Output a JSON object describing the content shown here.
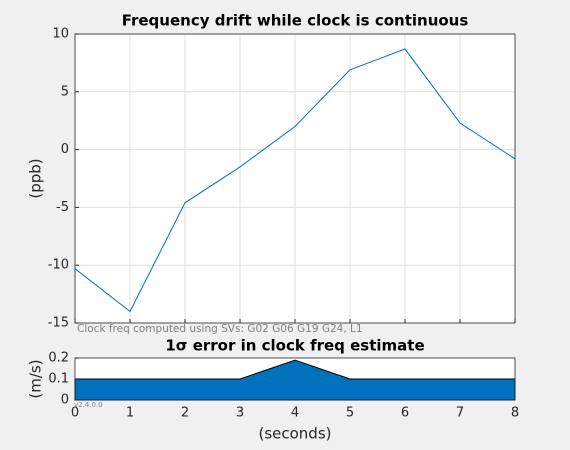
{
  "chart_data": [
    {
      "type": "line",
      "title": "Frequency drift while clock is continuous",
      "ylabel": "(ppb)",
      "annotation": "Clock freq computed using SVs:  G02 G06 G19 G24, L1",
      "x": [
        0,
        1,
        2,
        3,
        4,
        5,
        6,
        7,
        8
      ],
      "series": [
        {
          "color": "#0072bd",
          "values": [
            -10.3,
            -14,
            -4.6,
            -1.5,
            2,
            6.9,
            8.7,
            2.3,
            -0.8
          ]
        }
      ],
      "xlim": [
        0,
        8
      ],
      "xticks": [
        0,
        1,
        2,
        3,
        4,
        5,
        6,
        7,
        8
      ],
      "ylim": [
        -15,
        10
      ],
      "yticks": [
        -15,
        -10,
        -5,
        0,
        5,
        10
      ],
      "grid": true
    },
    {
      "type": "area",
      "title": "1σ error in clock freq estimate",
      "ylabel": "(m/s)",
      "xlabel": "(seconds)",
      "annotation": "v2.4.0.0",
      "x": [
        0,
        1,
        2,
        3,
        4,
        5,
        6,
        7,
        8
      ],
      "series": [
        {
          "color": "#0072bd",
          "values": [
            0.1,
            0.1,
            0.1,
            0.1,
            0.19,
            0.1,
            0.1,
            0.1,
            0.1
          ]
        }
      ],
      "xlim": [
        0,
        8
      ],
      "xticks": [
        0,
        1,
        2,
        3,
        4,
        5,
        6,
        7,
        8
      ],
      "ylim": [
        0,
        0.2
      ],
      "yticks": [
        0,
        0.1,
        0.2
      ],
      "grid": false
    }
  ]
}
